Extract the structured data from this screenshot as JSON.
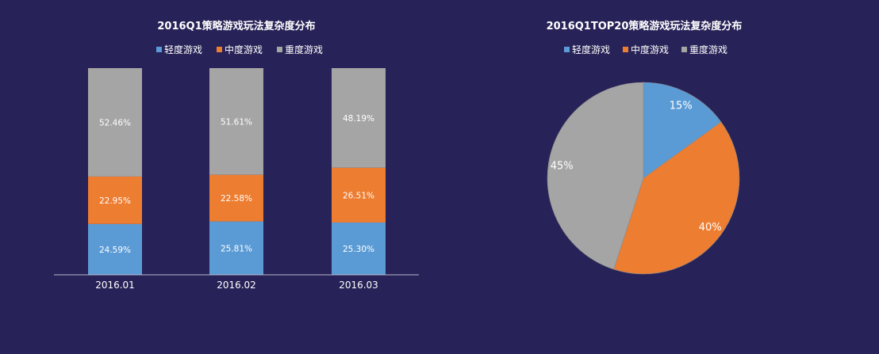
{
  "chart_data": [
    {
      "type": "bar",
      "stacked": true,
      "title": "2016Q1策略游戏玩法复杂度分布",
      "categories": [
        "2016.01",
        "2016.02",
        "2016.03"
      ],
      "series": [
        {
          "name": "轻度游戏",
          "color": "#5b9bd5",
          "values": [
            24.59,
            25.81,
            25.3
          ],
          "labels": [
            "24.59%",
            "25.81%",
            "25.30%"
          ]
        },
        {
          "name": "中度游戏",
          "color": "#ed7d31",
          "values": [
            22.95,
            22.58,
            26.51
          ],
          "labels": [
            "22.95%",
            "22.58%",
            "26.51%"
          ]
        },
        {
          "name": "重度游戏",
          "color": "#a5a5a5",
          "values": [
            52.46,
            51.61,
            48.19
          ],
          "labels": [
            "52.46%",
            "51.61%",
            "48.19%"
          ]
        }
      ],
      "ylim": [
        0,
        100
      ],
      "legend_position": "top",
      "grid": false
    },
    {
      "type": "pie",
      "title": "2016Q1TOP20策略游戏玩法复杂度分布",
      "slices": [
        {
          "name": "轻度游戏",
          "color": "#5b9bd5",
          "value": 15,
          "label": "15%"
        },
        {
          "name": "中度游戏",
          "color": "#ed7d31",
          "value": 40,
          "label": "40%"
        },
        {
          "name": "重度游戏",
          "color": "#a5a5a5",
          "value": 45,
          "label": "45%"
        }
      ],
      "legend_position": "top"
    }
  ]
}
